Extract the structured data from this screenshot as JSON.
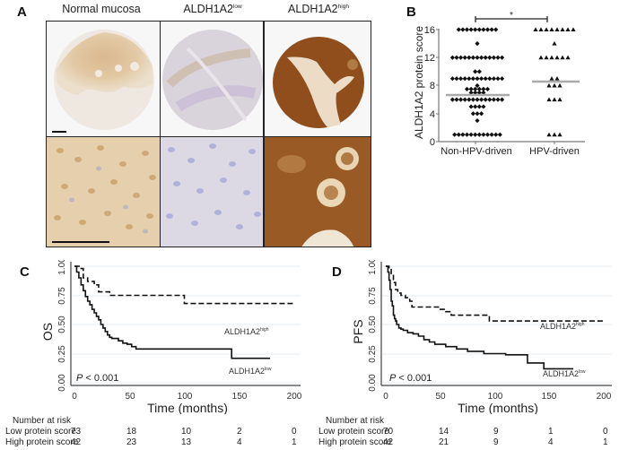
{
  "panel_a": {
    "letter": "A",
    "columns": [
      {
        "label": "Normal mucosa",
        "sup": ""
      },
      {
        "label": "ALDH1A2",
        "sup": "low"
      },
      {
        "label": "ALDH1A2",
        "sup": "high"
      }
    ]
  },
  "panel_b": {
    "letter": "B"
  },
  "panel_c": {
    "letter": "C"
  },
  "panel_d": {
    "letter": "D"
  },
  "chart_data": [
    {
      "id": "B",
      "type": "scatter",
      "title": "",
      "xlabel": "",
      "ylabel": "ALDH1A2 protein score",
      "ylim": [
        0,
        16
      ],
      "yticks": [
        0,
        4,
        8,
        12,
        16
      ],
      "categories": [
        "Non-HPV-driven",
        "HPV-driven"
      ],
      "significance": "*",
      "series": [
        {
          "name": "Non-HPV-driven",
          "marker": "diamond",
          "values_by_score": {
            "16": 10,
            "14": 1,
            "12": 13,
            "10": 2,
            "9": 13,
            "8": 1,
            "7.5": 6,
            "7": 4,
            "6": 13,
            "5": 4,
            "4": 3,
            "3": 1,
            "1": 12
          },
          "mean": 6.7
        },
        {
          "name": "HPV-driven",
          "marker": "triangle",
          "values_by_score": {
            "16": 8,
            "14": 1,
            "12": 6,
            "9": 2,
            "8": 3,
            "6": 3,
            "1": 3
          },
          "mean": 8.6
        }
      ]
    },
    {
      "id": "C",
      "type": "line",
      "subtype": "kaplan-meier",
      "xlabel": "Time (months)",
      "ylabel": "OS",
      "xlim": [
        0,
        200
      ],
      "ylim": [
        0,
        1
      ],
      "xticks": [
        0,
        50,
        100,
        150,
        200
      ],
      "yticks": [
        "0.00",
        "0.25",
        "0.50",
        "0.75",
        "1.00"
      ],
      "annotation": "P < 0.001",
      "series": [
        {
          "name": "ALDH1A2",
          "sup": "high",
          "style": "dashed",
          "x": [
            0,
            6,
            6,
            8,
            8,
            12,
            12,
            18,
            18,
            22,
            22,
            32,
            32,
            50,
            50,
            100,
            100,
            103,
            103,
            200
          ],
          "y": [
            1.0,
            1.0,
            0.98,
            0.98,
            0.9,
            0.9,
            0.87,
            0.87,
            0.84,
            0.84,
            0.78,
            0.78,
            0.75,
            0.75,
            0.75,
            0.75,
            0.68,
            0.68,
            0.68,
            0.68
          ]
        },
        {
          "name": "ALDH1A2",
          "sup": "low",
          "style": "solid",
          "x": [
            0,
            2,
            4,
            6,
            8,
            10,
            12,
            14,
            16,
            18,
            20,
            22,
            24,
            26,
            28,
            30,
            32,
            34,
            36,
            40,
            44,
            48,
            52,
            56,
            60,
            64,
            68,
            80,
            100,
            120,
            143,
            143,
            178
          ],
          "y": [
            1.0,
            0.95,
            0.9,
            0.84,
            0.79,
            0.74,
            0.7,
            0.67,
            0.63,
            0.6,
            0.57,
            0.54,
            0.5,
            0.47,
            0.44,
            0.41,
            0.39,
            0.38,
            0.38,
            0.36,
            0.34,
            0.33,
            0.31,
            0.29,
            0.29,
            0.29,
            0.29,
            0.29,
            0.29,
            0.29,
            0.29,
            0.21,
            0.21
          ]
        }
      ],
      "risk_table": {
        "header": "Number at risk",
        "rows": [
          {
            "label": "Low protein score",
            "values": [
              73,
              18,
              10,
              2,
              0
            ]
          },
          {
            "label": "High protein score",
            "values": [
              42,
              23,
              13,
              4,
              1
            ]
          }
        ]
      }
    },
    {
      "id": "D",
      "type": "line",
      "subtype": "kaplan-meier",
      "xlabel": "Time (months)",
      "ylabel": "PFS",
      "xlim": [
        0,
        200
      ],
      "ylim": [
        0,
        1
      ],
      "xticks": [
        0,
        50,
        100,
        150,
        200
      ],
      "yticks": [
        "0.00",
        "0.25",
        "0.50",
        "0.75",
        "1.00"
      ],
      "annotation": "P < 0.001",
      "series": [
        {
          "name": "ALDH1A2",
          "sup": "high",
          "style": "dashed",
          "x": [
            0,
            3,
            5,
            7,
            9,
            11,
            14,
            18,
            22,
            24,
            26,
            30,
            50,
            55,
            60,
            65,
            95,
            95,
            200
          ],
          "y": [
            1.0,
            0.98,
            0.93,
            0.86,
            0.8,
            0.77,
            0.75,
            0.73,
            0.7,
            0.65,
            0.65,
            0.65,
            0.63,
            0.61,
            0.58,
            0.58,
            0.58,
            0.53,
            0.53
          ]
        },
        {
          "name": "ALDH1A2",
          "sup": "low",
          "style": "solid",
          "x": [
            0,
            2,
            3,
            4,
            5,
            6,
            7,
            8,
            9,
            10,
            12,
            14,
            16,
            20,
            25,
            30,
            35,
            40,
            45,
            55,
            65,
            75,
            90,
            110,
            130,
            130,
            145,
            145,
            172
          ],
          "y": [
            1.0,
            0.95,
            0.88,
            0.8,
            0.7,
            0.66,
            0.58,
            0.55,
            0.53,
            0.5,
            0.47,
            0.46,
            0.45,
            0.43,
            0.42,
            0.4,
            0.37,
            0.35,
            0.33,
            0.31,
            0.29,
            0.27,
            0.25,
            0.24,
            0.24,
            0.17,
            0.17,
            0.12,
            0.12
          ]
        }
      ],
      "risk_table": {
        "header": "Number at risk",
        "rows": [
          {
            "label": "Low protein score",
            "values": [
              70,
              14,
              9,
              1,
              0
            ]
          },
          {
            "label": "High protein score",
            "values": [
              42,
              21,
              9,
              4,
              1
            ]
          }
        ]
      }
    }
  ]
}
